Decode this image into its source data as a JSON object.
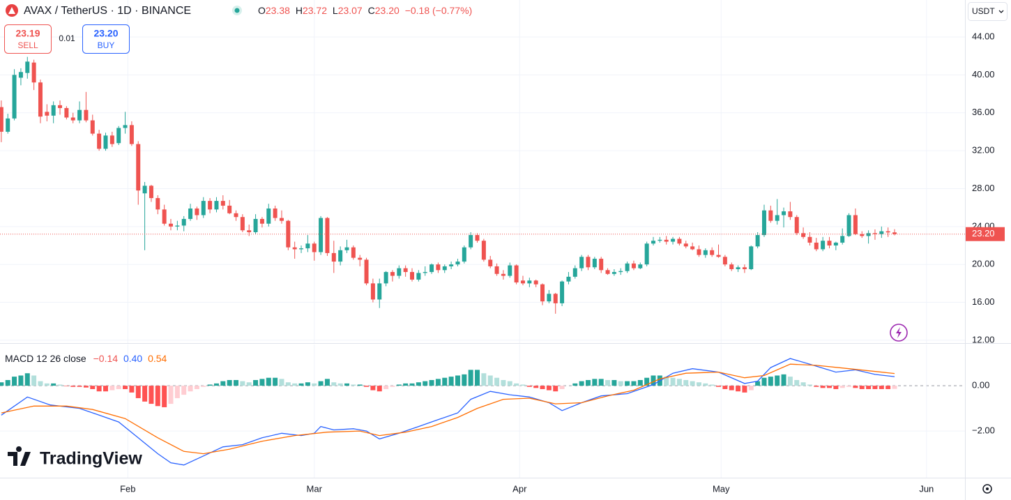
{
  "chart_data": {
    "type": "candlestick",
    "header": {
      "symbol": "AVAX / TetherUS · 1D · BINANCE",
      "ohlc": [
        {
          "key": "O",
          "value": "23.38"
        },
        {
          "key": "H",
          "value": "23.72"
        },
        {
          "key": "L",
          "value": "23.07"
        },
        {
          "key": "C",
          "value": "23.20"
        }
      ],
      "change": "−0.18 (−0.77%)"
    },
    "trade": {
      "sell_price": "23.19",
      "sell": "SELL",
      "spread": "0.01",
      "buy_price": "23.20",
      "buy": "BUY"
    },
    "currency": "USDT",
    "brand": "TradingView",
    "up_color": "#26a69a",
    "down_color": "#ef5350",
    "xlim": [
      -0.2,
      147.8
    ],
    "xticks": [
      {
        "value": 19.4,
        "label": "Feb"
      },
      {
        "value": 48,
        "label": "Mar"
      },
      {
        "value": 79.5,
        "label": "Apr"
      },
      {
        "value": 110.4,
        "label": "May"
      },
      {
        "value": 141.9,
        "label": "Jun"
      }
    ],
    "ylim": [
      11.7,
      47.9
    ],
    "yticks": [
      {
        "value": 12,
        "label": "12.00"
      },
      {
        "value": 16,
        "label": "16.00"
      },
      {
        "value": 20,
        "label": "20.00"
      },
      {
        "value": 24,
        "label": "24.00"
      },
      {
        "value": 28,
        "label": "28.00"
      },
      {
        "value": 32,
        "label": "32.00"
      },
      {
        "value": 36,
        "label": "36.00"
      },
      {
        "value": 40,
        "label": "40.00"
      },
      {
        "value": 44,
        "label": "44.00"
      }
    ],
    "grid": true,
    "price_line": {
      "value": 23.2,
      "label": "23.20"
    },
    "candles": [
      [
        36.6,
        37.3,
        32.9,
        34.0
      ],
      [
        34.0,
        35.9,
        33.8,
        35.4
      ],
      [
        35.4,
        40.6,
        35.2,
        40.0
      ],
      [
        39.7,
        40.7,
        38.9,
        40.3
      ],
      [
        40.2,
        41.9,
        39.6,
        41.4
      ],
      [
        41.3,
        41.6,
        38.4,
        39.2
      ],
      [
        39.2,
        39.5,
        34.9,
        35.6
      ],
      [
        36.1,
        36.9,
        35.1,
        35.7
      ],
      [
        35.7,
        37.2,
        34.9,
        36.8
      ],
      [
        36.8,
        37.3,
        35.8,
        36.5
      ],
      [
        36.5,
        36.7,
        35.3,
        35.5
      ],
      [
        35.5,
        36.0,
        34.9,
        35.2
      ],
      [
        35.2,
        37.2,
        34.9,
        36.3
      ],
      [
        36.3,
        38.2,
        35.0,
        35.2
      ],
      [
        35.2,
        35.8,
        33.6,
        33.8
      ],
      [
        33.8,
        34.2,
        32.0,
        32.2
      ],
      [
        32.2,
        33.9,
        32.0,
        33.6
      ],
      [
        33.6,
        34.0,
        32.4,
        32.7
      ],
      [
        32.8,
        34.6,
        32.6,
        34.4
      ],
      [
        34.4,
        36.1,
        33.8,
        34.7
      ],
      [
        34.7,
        35.1,
        32.5,
        32.7
      ],
      [
        32.7,
        33.0,
        26.3,
        27.8
      ],
      [
        27.5,
        28.7,
        21.5,
        28.3
      ],
      [
        28.3,
        28.4,
        26.6,
        27.0
      ],
      [
        27.0,
        27.3,
        25.3,
        25.8
      ],
      [
        25.8,
        26.3,
        24.1,
        24.3
      ],
      [
        24.3,
        24.8,
        23.6,
        24.0
      ],
      [
        24.0,
        24.6,
        23.6,
        24.1
      ],
      [
        24.1,
        25.1,
        23.5,
        24.8
      ],
      [
        24.8,
        26.4,
        24.6,
        25.9
      ],
      [
        25.9,
        26.1,
        24.7,
        25.2
      ],
      [
        25.2,
        27.1,
        24.9,
        26.7
      ],
      [
        26.7,
        27.0,
        25.4,
        25.8
      ],
      [
        25.8,
        27.1,
        25.5,
        26.7
      ],
      [
        26.7,
        27.3,
        25.8,
        26.2
      ],
      [
        26.2,
        26.8,
        25.3,
        25.4
      ],
      [
        25.4,
        25.7,
        24.6,
        25.0
      ],
      [
        25.0,
        25.3,
        23.4,
        23.6
      ],
      [
        23.6,
        24.2,
        23.0,
        23.4
      ],
      [
        23.4,
        25.3,
        23.2,
        24.8
      ],
      [
        24.8,
        25.0,
        23.9,
        24.3
      ],
      [
        24.3,
        26.4,
        24.0,
        25.9
      ],
      [
        25.9,
        26.2,
        24.6,
        24.9
      ],
      [
        24.9,
        25.7,
        24.3,
        24.6
      ],
      [
        24.6,
        24.7,
        21.5,
        21.8
      ],
      [
        21.8,
        22.4,
        20.6,
        21.6
      ],
      [
        21.6,
        22.0,
        21.2,
        21.7
      ],
      [
        21.7,
        23.1,
        21.3,
        22.2
      ],
      [
        22.2,
        22.4,
        20.4,
        21.3
      ],
      [
        21.3,
        25.1,
        21.0,
        24.9
      ],
      [
        24.9,
        25.0,
        20.9,
        21.2
      ],
      [
        21.2,
        22.5,
        19.1,
        20.3
      ],
      [
        20.3,
        21.9,
        19.9,
        21.5
      ],
      [
        21.5,
        22.6,
        21.2,
        21.8
      ],
      [
        21.8,
        22.0,
        20.5,
        20.7
      ],
      [
        20.7,
        21.0,
        19.8,
        20.5
      ],
      [
        20.5,
        20.7,
        17.8,
        18.0
      ],
      [
        18.0,
        18.5,
        16.0,
        16.3
      ],
      [
        16.3,
        18.5,
        15.4,
        18.0
      ],
      [
        18.0,
        19.3,
        17.7,
        19.2
      ],
      [
        19.2,
        19.4,
        18.2,
        18.8
      ],
      [
        18.8,
        19.9,
        18.5,
        19.6
      ],
      [
        19.6,
        19.9,
        18.7,
        19.2
      ],
      [
        19.2,
        19.6,
        18.2,
        18.4
      ],
      [
        18.4,
        19.4,
        18.2,
        19.1
      ],
      [
        19.1,
        19.8,
        18.8,
        19.2
      ],
      [
        19.2,
        20.1,
        19.0,
        20.0
      ],
      [
        20.0,
        20.2,
        19.1,
        19.4
      ],
      [
        19.4,
        20.0,
        19.1,
        19.8
      ],
      [
        19.8,
        20.3,
        19.5,
        20.0
      ],
      [
        20.0,
        20.6,
        19.8,
        20.3
      ],
      [
        20.3,
        22.0,
        20.1,
        21.8
      ],
      [
        21.8,
        23.4,
        21.6,
        23.1
      ],
      [
        23.1,
        23.3,
        22.3,
        22.5
      ],
      [
        22.5,
        22.7,
        20.3,
        20.5
      ],
      [
        20.5,
        20.9,
        19.6,
        19.8
      ],
      [
        19.8,
        20.1,
        18.8,
        19.0
      ],
      [
        19.0,
        19.4,
        18.4,
        18.8
      ],
      [
        18.8,
        20.2,
        18.6,
        19.9
      ],
      [
        19.9,
        20.0,
        17.9,
        18.1
      ],
      [
        18.3,
        18.8,
        17.8,
        18.0
      ],
      [
        18.0,
        18.6,
        17.6,
        18.3
      ],
      [
        18.3,
        18.4,
        17.6,
        17.9
      ],
      [
        17.9,
        18.0,
        15.7,
        16.1
      ],
      [
        16.1,
        17.3,
        15.9,
        16.9
      ],
      [
        16.9,
        17.0,
        14.8,
        15.9
      ],
      [
        15.9,
        18.3,
        15.6,
        18.2
      ],
      [
        18.2,
        19.2,
        17.9,
        18.7
      ],
      [
        18.7,
        19.9,
        18.5,
        19.6
      ],
      [
        19.6,
        21.0,
        19.3,
        20.8
      ],
      [
        20.8,
        21.0,
        19.4,
        19.7
      ],
      [
        19.7,
        20.8,
        19.5,
        20.6
      ],
      [
        20.6,
        20.8,
        19.1,
        19.4
      ],
      [
        19.4,
        19.6,
        18.9,
        19.0
      ],
      [
        19.0,
        19.5,
        18.8,
        19.2
      ],
      [
        19.2,
        19.6,
        18.9,
        19.3
      ],
      [
        19.3,
        20.3,
        19.1,
        20.1
      ],
      [
        20.1,
        20.4,
        19.4,
        19.6
      ],
      [
        19.6,
        20.2,
        19.5,
        20.0
      ],
      [
        20.0,
        22.4,
        19.8,
        22.2
      ],
      [
        22.2,
        22.9,
        22.0,
        22.5
      ],
      [
        22.5,
        22.9,
        22.3,
        22.6
      ],
      [
        22.6,
        23.0,
        22.1,
        22.4
      ],
      [
        22.4,
        22.9,
        22.1,
        22.7
      ],
      [
        22.7,
        22.9,
        22.0,
        22.2
      ],
      [
        22.2,
        22.5,
        21.7,
        21.9
      ],
      [
        21.9,
        22.3,
        21.5,
        21.6
      ],
      [
        21.6,
        22.0,
        20.8,
        21.0
      ],
      [
        21.0,
        21.7,
        20.7,
        21.5
      ],
      [
        21.5,
        21.8,
        20.8,
        21.0
      ],
      [
        21.0,
        22.1,
        20.7,
        20.8
      ],
      [
        20.8,
        21.0,
        19.8,
        20.0
      ],
      [
        20.0,
        20.2,
        19.3,
        19.5
      ],
      [
        19.5,
        19.9,
        19.2,
        19.7
      ],
      [
        19.7,
        20.0,
        19.1,
        19.5
      ],
      [
        19.5,
        22.0,
        19.4,
        21.9
      ],
      [
        21.9,
        23.4,
        21.7,
        23.1
      ],
      [
        23.1,
        26.3,
        22.9,
        25.7
      ],
      [
        25.7,
        26.2,
        24.4,
        24.6
      ],
      [
        24.6,
        26.9,
        24.2,
        25.2
      ],
      [
        25.2,
        26.0,
        23.9,
        25.6
      ],
      [
        25.6,
        26.6,
        24.7,
        25.0
      ],
      [
        25.0,
        25.2,
        23.1,
        23.3
      ],
      [
        23.3,
        23.9,
        22.7,
        22.9
      ],
      [
        22.9,
        23.4,
        22.0,
        22.3
      ],
      [
        22.3,
        22.8,
        21.4,
        21.6
      ],
      [
        21.6,
        22.9,
        21.4,
        22.5
      ],
      [
        22.5,
        22.9,
        21.7,
        22.0
      ],
      [
        22.0,
        22.4,
        21.5,
        22.3
      ],
      [
        22.3,
        23.8,
        22.1,
        23.0
      ],
      [
        23.0,
        25.4,
        22.9,
        25.2
      ],
      [
        25.2,
        25.9,
        23.1,
        23.2
      ],
      [
        23.2,
        23.5,
        22.8,
        23.0
      ],
      [
        23.0,
        23.6,
        22.2,
        23.3
      ],
      [
        23.3,
        23.7,
        22.6,
        23.2
      ],
      [
        23.2,
        24.0,
        22.8,
        23.5
      ],
      [
        23.5,
        23.9,
        22.9,
        23.38
      ],
      [
        23.38,
        23.72,
        23.07,
        23.2
      ]
    ],
    "macd": {
      "label": "MACD 12 26 close",
      "legend_values": [
        "−0.14",
        "0.40",
        "0.54"
      ],
      "legend_colors": [
        "#ef5350",
        "#2962ff",
        "#ff6d00"
      ],
      "y2lim": [
        -4.06,
        1.85
      ],
      "y2ticks": [
        {
          "value": 0,
          "label": "0.00"
        },
        {
          "value": -2,
          "label": "−2.00"
        }
      ],
      "hist_colors": {
        "up_strong": "#26a69a",
        "up_weak": "#b2dfdb",
        "down_strong": "#ff5252",
        "down_weak": "#ffcdd2"
      },
      "histogram": [
        0.15,
        0.25,
        0.4,
        0.45,
        0.55,
        0.45,
        0.2,
        0.1,
        0.1,
        0.05,
        -0.02,
        -0.05,
        -0.05,
        -0.08,
        -0.15,
        -0.25,
        -0.25,
        -0.2,
        -0.15,
        -0.15,
        -0.3,
        -0.55,
        -0.7,
        -0.8,
        -0.9,
        -0.95,
        -0.8,
        -0.55,
        -0.4,
        -0.25,
        -0.15,
        -0.05,
        0.05,
        0.1,
        0.2,
        0.25,
        0.25,
        0.2,
        0.15,
        0.25,
        0.3,
        0.35,
        0.35,
        0.3,
        0.15,
        0.1,
        0.1,
        0.15,
        0.1,
        0.2,
        0.3,
        0.15,
        0.1,
        0.1,
        0.05,
        0.05,
        -0.05,
        -0.2,
        -0.25,
        -0.15,
        -0.05,
        0.05,
        0.1,
        0.1,
        0.15,
        0.2,
        0.25,
        0.3,
        0.35,
        0.4,
        0.45,
        0.5,
        0.7,
        0.7,
        0.55,
        0.45,
        0.35,
        0.25,
        0.2,
        0.1,
        0.05,
        -0.05,
        -0.1,
        -0.15,
        -0.2,
        -0.25,
        -0.15,
        0.0,
        0.1,
        0.2,
        0.25,
        0.3,
        0.3,
        0.25,
        0.25,
        0.2,
        0.2,
        0.2,
        0.25,
        0.35,
        0.45,
        0.45,
        0.4,
        0.35,
        0.3,
        0.25,
        0.2,
        0.15,
        0.1,
        0.05,
        -0.05,
        -0.15,
        -0.2,
        -0.25,
        -0.3,
        -0.2,
        0.2,
        0.35,
        0.4,
        0.45,
        0.5,
        0.4,
        0.25,
        0.15,
        0.05,
        -0.05,
        -0.1,
        -0.1,
        -0.15,
        -0.1,
        -0.05,
        -0.1,
        -0.15,
        -0.15,
        -0.15,
        -0.15,
        -0.15,
        -0.14
      ],
      "macd_line": {
        "color": "#2962ff",
        "x": [
          0,
          4,
          7.5,
          12,
          15,
          18,
          21,
          24,
          26,
          28,
          31,
          34,
          37,
          40,
          43,
          46,
          48,
          49,
          51,
          54,
          56,
          58,
          61,
          64,
          67,
          70,
          72,
          75,
          78,
          81,
          84,
          86,
          89,
          92,
          96,
          100,
          103,
          106,
          110,
          114,
          116,
          118,
          121,
          124,
          128,
          131,
          134,
          137
        ],
        "values": [
          -1.3,
          -0.5,
          -0.85,
          -1.0,
          -1.3,
          -1.6,
          -2.3,
          -3.0,
          -3.4,
          -3.5,
          -3.1,
          -2.7,
          -2.6,
          -2.3,
          -2.1,
          -2.2,
          -2.1,
          -1.8,
          -1.95,
          -1.9,
          -2.0,
          -2.35,
          -2.1,
          -1.8,
          -1.5,
          -1.2,
          -0.6,
          -0.25,
          -0.4,
          -0.5,
          -0.75,
          -1.1,
          -0.75,
          -0.45,
          -0.35,
          0.05,
          0.55,
          0.75,
          0.6,
          0.1,
          0.2,
          0.8,
          1.2,
          0.95,
          0.6,
          0.7,
          0.5,
          0.4
        ]
      },
      "signal_line": {
        "color": "#ff6d00",
        "x": [
          0,
          5,
          10,
          14,
          19,
          24,
          28,
          31,
          35,
          40,
          45,
          50,
          55,
          58,
          62,
          66,
          70,
          73,
          77,
          81,
          85,
          89,
          93,
          97,
          101,
          105,
          110,
          114,
          117,
          121,
          125,
          130,
          137
        ],
        "values": [
          -1.2,
          -0.9,
          -0.9,
          -1.05,
          -1.45,
          -2.3,
          -2.9,
          -3.0,
          -2.8,
          -2.45,
          -2.2,
          -2.05,
          -2.0,
          -2.2,
          -2.05,
          -1.8,
          -1.4,
          -1.0,
          -0.6,
          -0.55,
          -0.8,
          -0.75,
          -0.45,
          -0.2,
          0.3,
          0.55,
          0.6,
          0.35,
          0.45,
          0.95,
          0.9,
          0.75,
          0.54
        ]
      }
    }
  }
}
